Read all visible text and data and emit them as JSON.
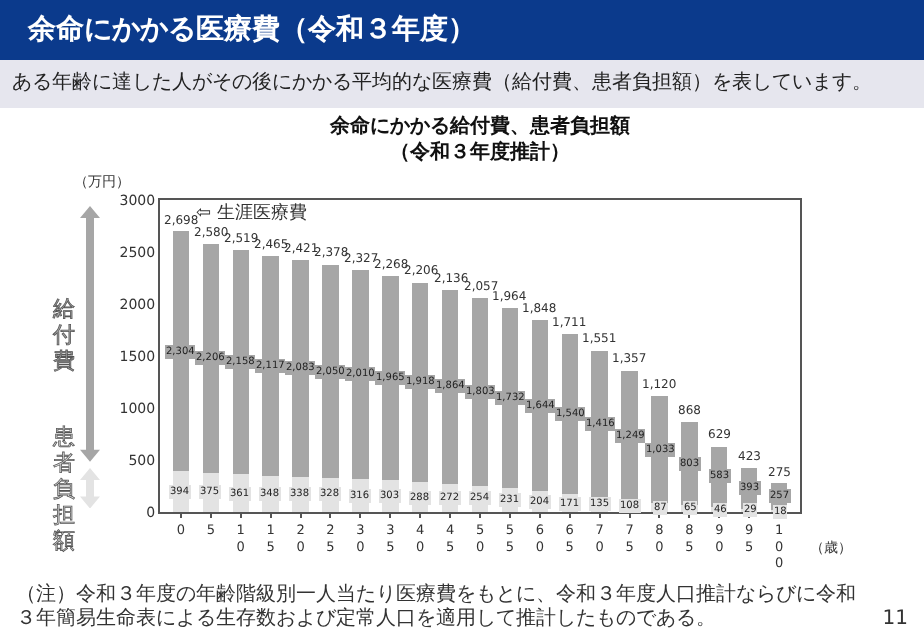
{
  "chart_data": {
    "type": "bar",
    "stacked": true,
    "title": "余命にかかる給付費、患者負担額",
    "subtitle": "（令和３年度推計）",
    "ylabel": "（万円）",
    "xlabel": "（歳）",
    "categories": [
      "0",
      "5",
      "10",
      "15",
      "20",
      "25",
      "30",
      "35",
      "40",
      "45",
      "50",
      "55",
      "60",
      "65",
      "70",
      "75",
      "80",
      "85",
      "90",
      "95",
      "100"
    ],
    "series": [
      {
        "name": "患者負担額",
        "color": "#e3e3e3",
        "values": [
          394,
          375,
          361,
          348,
          338,
          328,
          316,
          303,
          288,
          272,
          254,
          231,
          204,
          171,
          135,
          108,
          87,
          65,
          46,
          29,
          18
        ],
        "value_labels": [
          "394",
          "375",
          "361",
          "348",
          "338",
          "328",
          "316",
          "303",
          "288",
          "272",
          "254",
          "231",
          "204",
          "171",
          "135",
          "108",
          "87",
          "65",
          "46",
          "29",
          "18"
        ]
      },
      {
        "name": "給付費",
        "color": "#a6a6a6",
        "values": [
          2304,
          2206,
          2158,
          2117,
          2083,
          2050,
          2010,
          1965,
          1918,
          1864,
          1803,
          1732,
          1644,
          1540,
          1416,
          1249,
          1033,
          803,
          583,
          393,
          257
        ],
        "value_labels": [
          "2,304",
          "2,206",
          "2,158",
          "2,117",
          "2,083",
          "2,050",
          "2,010",
          "1,965",
          "1,918",
          "1,864",
          "1,803",
          "1,732",
          "1,644",
          "1,540",
          "1,416",
          "1,249",
          "1,033",
          "803",
          "583",
          "393",
          "257"
        ]
      }
    ],
    "totals": [
      "2,698",
      "2,580",
      "2,519",
      "2,465",
      "2,421",
      "2,378",
      "2,327",
      "2,268",
      "2,206",
      "2,136",
      "2,057",
      "1,964",
      "1,848",
      "1,711",
      "1,551",
      "1,357",
      "1,120",
      "868",
      "629",
      "423",
      "275"
    ],
    "ylim": [
      0,
      3000
    ],
    "yticks": [
      0,
      500,
      1000,
      1500,
      2000,
      2500,
      3000
    ],
    "grid": false,
    "legend": "left",
    "annotations": [
      {
        "text": "⇦ 生涯医療費",
        "x": "0",
        "y": 2698
      },
      "余命にかかる医療費（令和３年度）",
      "ある年齢に達した人がその後にかかる平均的な医療費（給付費、患者負担額）を表しています。",
      "（注）令和３年度の年齢階級別一人当たり医療費をもとに、令和３年度人口推計ならびに令和３年簡易生命表による生存数および定常人口を適用して推計したものである。",
      "11"
    ]
  }
}
